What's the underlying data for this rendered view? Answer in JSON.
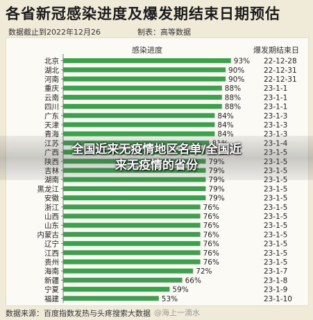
{
  "header": {
    "title": "各省新冠感染进度及爆发期结束日期预估",
    "data_cutoff": "数据截止到2022年12月26",
    "producer": "制表：高等数据"
  },
  "footer": {
    "source": "数据来源：百度指数发热与头疼搜索大数据",
    "watermark": "@海上一滴水"
  },
  "overlay": {
    "line1": "全国近来无疫情地区名单/全国近",
    "line2": "来无疫情的省份"
  },
  "colors": {
    "bar": "#3aa24b",
    "card": "#fbfaf4",
    "background": "#f0ead8"
  },
  "chart_data": {
    "type": "bar",
    "orientation": "horizontal",
    "column_headers": {
      "progress": "感染进度",
      "end_date": "爆发期结束日"
    },
    "xlim": [
      0,
      100
    ],
    "grid": false,
    "categories": [
      "北京",
      "湖北",
      "河南",
      "重庆",
      "云南",
      "四川",
      "广东",
      "天津",
      "青海",
      "江苏",
      "广西",
      "陕西",
      "吉林",
      "湖南",
      "黑龙江",
      "安徽",
      "浙江",
      "山西",
      "山东",
      "内蒙古",
      "辽宁",
      "江西",
      "贵州",
      "海南",
      "新疆",
      "宁夏",
      "福建"
    ],
    "values": [
      93,
      90,
      90,
      88,
      88,
      88,
      84,
      84,
      84,
      81,
      79,
      79,
      79,
      79,
      79,
      79,
      76,
      76,
      76,
      76,
      76,
      76,
      76,
      72,
      66,
      59,
      53
    ],
    "value_labels": [
      "93%",
      "90%",
      "90%",
      "88%",
      "88%",
      "88%",
      "84%",
      "84%",
      "84%",
      "81%",
      "79%",
      "79%",
      "79%",
      "79%",
      "79%",
      "79%",
      "76%",
      "76%",
      "76%",
      "76%",
      "76%",
      "76%",
      "76%",
      "72%",
      "66%",
      "59%",
      "53%"
    ],
    "end_dates": [
      "22-12-28",
      "22-12-31",
      "22-12-31",
      "23-1-1",
      "23-1-1",
      "23-1-1",
      "23-1-3",
      "23-1-3",
      "23-1-3",
      "23-1-4",
      "23-1-5",
      "23-1-5",
      "23-1-5",
      "23-1-5",
      "23-1-5",
      "23-1-5",
      "23-1-5",
      "23-1-5",
      "23-1-5",
      "23-1-5",
      "23-1-5",
      "23-1-5",
      "23-1-5",
      "23-1-7",
      "23-1-8",
      "23-1-9",
      "23-1-10"
    ]
  }
}
